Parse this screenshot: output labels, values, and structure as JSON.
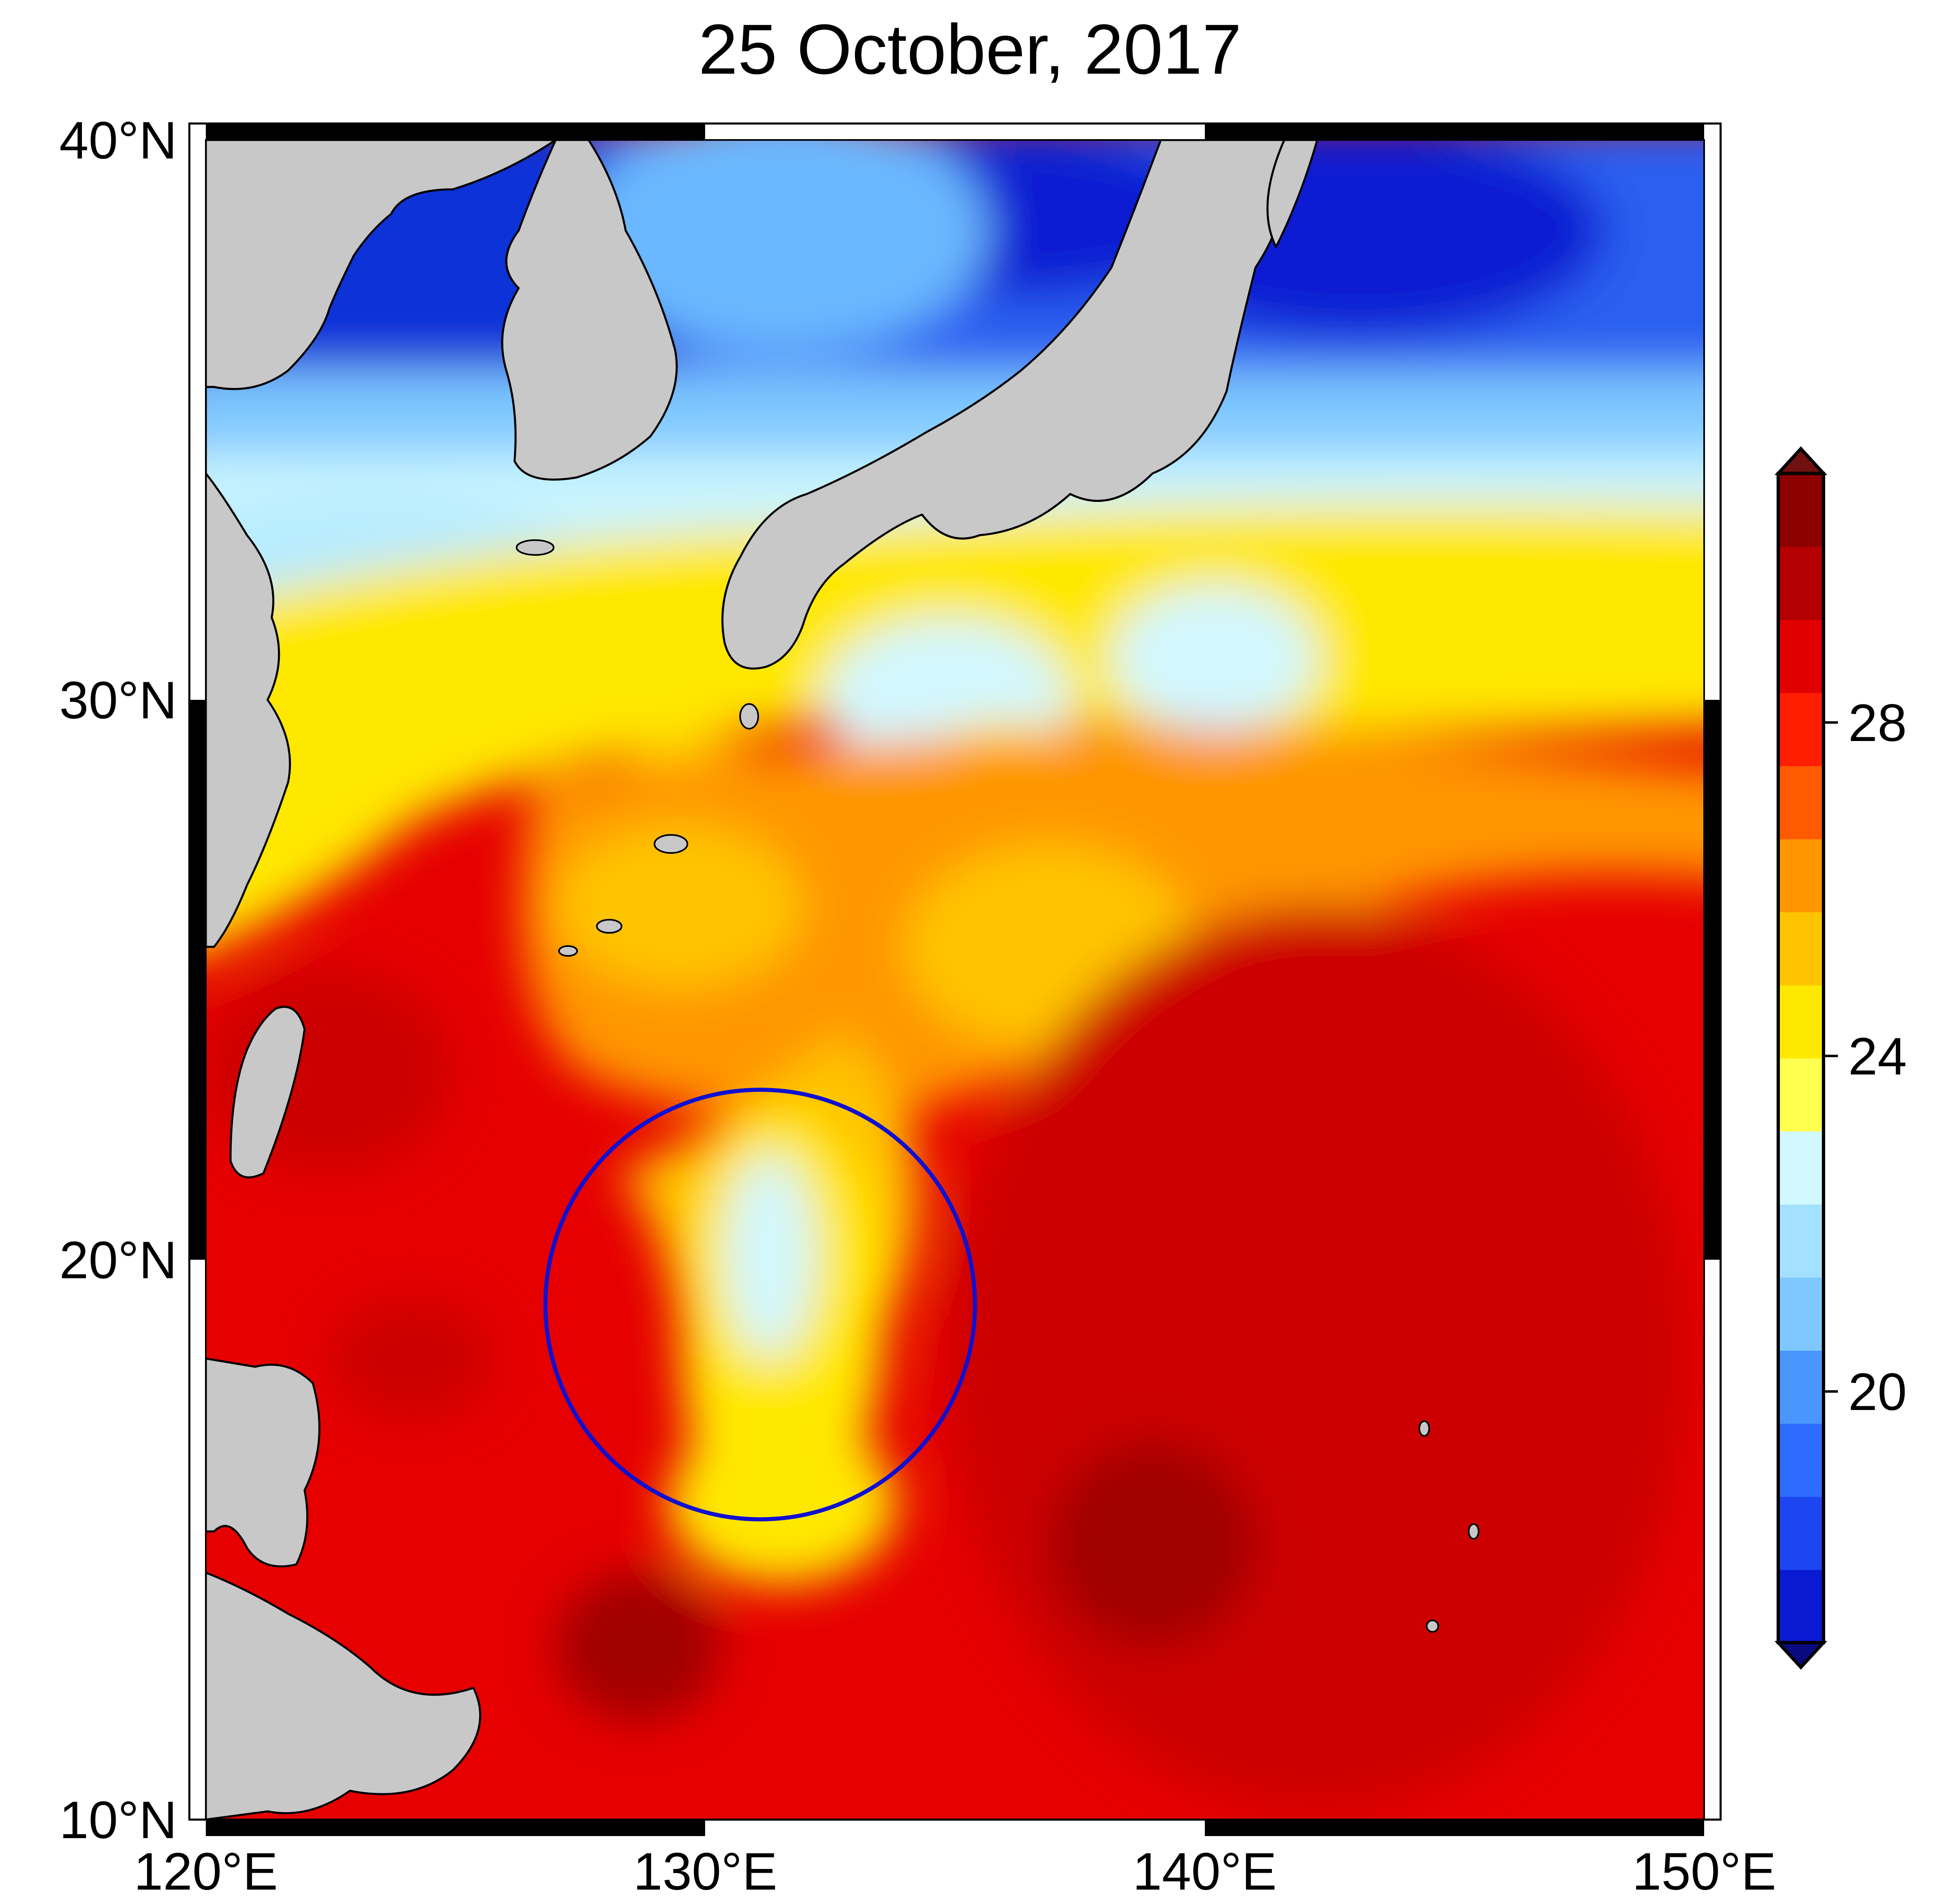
{
  "title": "25 October, 2017",
  "map": {
    "lon_range": [
      120,
      150
    ],
    "lat_range": [
      10,
      40
    ],
    "lon_ticks": [
      "120°E",
      "130°E",
      "140°E",
      "150°E"
    ],
    "lat_ticks": [
      "10°N",
      "20°N",
      "30°N",
      "40°N"
    ],
    "highlight_circle": {
      "center_lon": 131.1,
      "center_lat": 19.2,
      "radius_deg": 4.3,
      "color": "#1010d0"
    },
    "land_color": "#c8c8c8"
  },
  "colorbar": {
    "ticks": [
      "20",
      "24",
      "28"
    ],
    "levels": [
      17,
      18,
      19,
      20,
      21,
      22,
      23,
      24,
      25,
      26,
      27,
      28,
      29,
      30,
      31
    ],
    "colors": [
      "#0a1ad2",
      "#1e46f0",
      "#2e6cff",
      "#4a96ff",
      "#7ec8ff",
      "#a4e0ff",
      "#d2f8ff",
      "#ffff50",
      "#ffe800",
      "#ffc400",
      "#ff9600",
      "#ff5a00",
      "#ff1e00",
      "#e00000",
      "#b40000",
      "#8c0000"
    ],
    "under_color": "#0a0a80",
    "over_color": "#701010"
  }
}
